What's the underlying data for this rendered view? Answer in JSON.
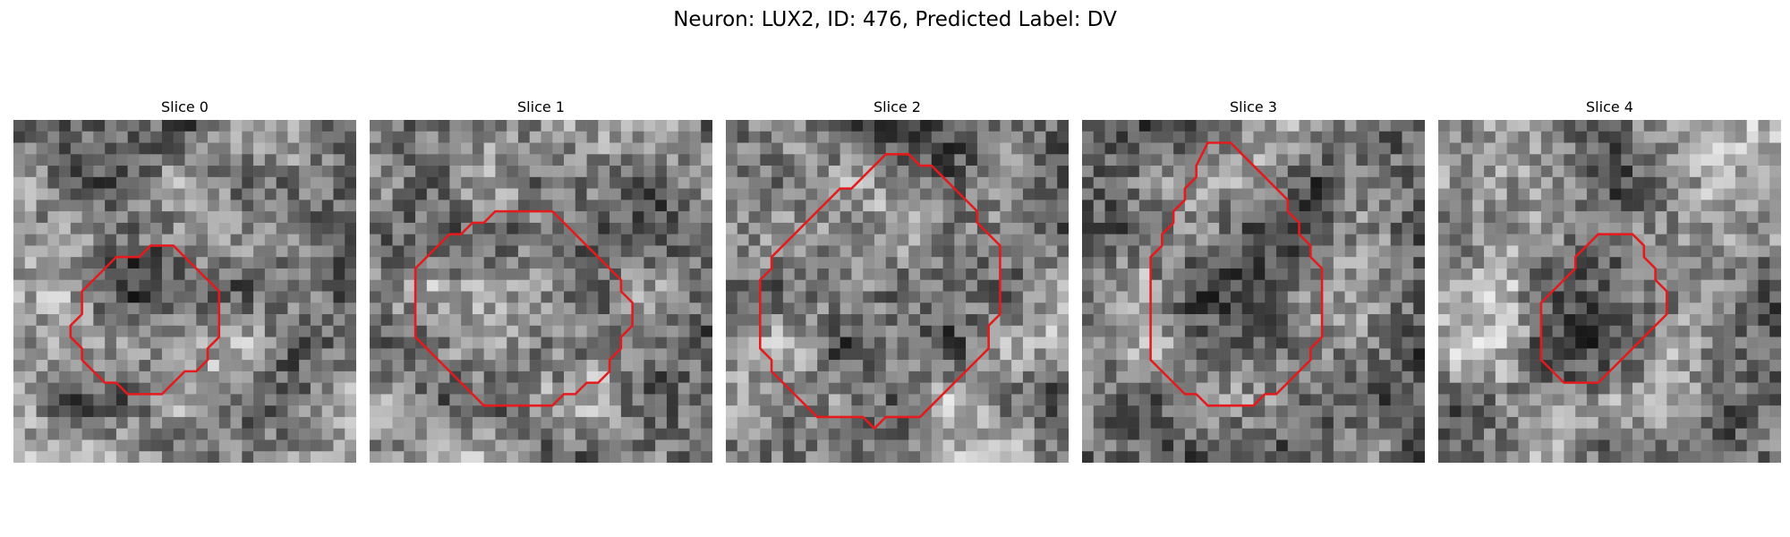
{
  "figure": {
    "title": "Neuron: LUX2, ID: 476, Predicted Label: DV"
  },
  "panels": [
    {
      "title": "Slice 0",
      "seed": 11,
      "contour_color": "#e41a1c",
      "contour": [
        [
          13,
          11
        ],
        [
          14,
          11
        ],
        [
          15,
          12
        ],
        [
          16,
          13
        ],
        [
          17,
          14
        ],
        [
          18,
          15
        ],
        [
          18,
          17
        ],
        [
          18,
          19
        ],
        [
          17,
          20
        ],
        [
          17,
          21
        ],
        [
          16,
          22
        ],
        [
          15,
          22
        ],
        [
          14,
          23
        ],
        [
          13,
          24
        ],
        [
          11,
          24
        ],
        [
          10,
          24
        ],
        [
          9,
          23
        ],
        [
          8,
          23
        ],
        [
          7,
          22
        ],
        [
          6,
          21
        ],
        [
          6,
          20
        ],
        [
          5,
          19
        ],
        [
          5,
          18
        ],
        [
          6,
          17
        ],
        [
          6,
          16
        ],
        [
          6,
          15
        ],
        [
          7,
          14
        ],
        [
          8,
          13
        ],
        [
          9,
          12
        ],
        [
          10,
          12
        ],
        [
          11,
          12
        ],
        [
          12,
          11
        ]
      ]
    },
    {
      "title": "Slice 1",
      "seed": 23,
      "contour_color": "#e41a1c",
      "contour": [
        [
          14,
          8
        ],
        [
          16,
          8
        ],
        [
          17,
          9
        ],
        [
          18,
          10
        ],
        [
          19,
          11
        ],
        [
          20,
          12
        ],
        [
          21,
          13
        ],
        [
          22,
          14
        ],
        [
          22,
          15
        ],
        [
          23,
          16
        ],
        [
          23,
          17
        ],
        [
          23,
          18
        ],
        [
          22,
          19
        ],
        [
          22,
          20
        ],
        [
          21,
          21
        ],
        [
          21,
          22
        ],
        [
          20,
          23
        ],
        [
          19,
          23
        ],
        [
          18,
          24
        ],
        [
          17,
          24
        ],
        [
          16,
          25
        ],
        [
          11,
          25
        ],
        [
          10,
          25
        ],
        [
          9,
          24
        ],
        [
          8,
          23
        ],
        [
          7,
          22
        ],
        [
          6,
          21
        ],
        [
          5,
          20
        ],
        [
          4,
          19
        ],
        [
          4,
          17
        ],
        [
          4,
          15
        ],
        [
          4,
          13
        ],
        [
          5,
          12
        ],
        [
          6,
          11
        ],
        [
          7,
          10
        ],
        [
          8,
          10
        ],
        [
          9,
          9
        ],
        [
          10,
          9
        ],
        [
          11,
          8
        ],
        [
          13,
          8
        ]
      ]
    },
    {
      "title": "Slice 2",
      "seed": 37,
      "contour_color": "#e41a1c",
      "contour": [
        [
          14,
          3
        ],
        [
          16,
          3
        ],
        [
          17,
          4
        ],
        [
          18,
          4
        ],
        [
          19,
          5
        ],
        [
          20,
          6
        ],
        [
          21,
          7
        ],
        [
          22,
          8
        ],
        [
          22,
          9
        ],
        [
          23,
          10
        ],
        [
          24,
          11
        ],
        [
          24,
          13
        ],
        [
          24,
          15
        ],
        [
          24,
          17
        ],
        [
          23,
          18
        ],
        [
          23,
          20
        ],
        [
          22,
          21
        ],
        [
          21,
          22
        ],
        [
          20,
          23
        ],
        [
          19,
          24
        ],
        [
          18,
          25
        ],
        [
          17,
          26
        ],
        [
          16,
          26
        ],
        [
          14,
          26
        ],
        [
          13,
          27
        ],
        [
          12,
          26
        ],
        [
          10,
          26
        ],
        [
          8,
          26
        ],
        [
          7,
          25
        ],
        [
          6,
          24
        ],
        [
          5,
          23
        ],
        [
          4,
          22
        ],
        [
          4,
          21
        ],
        [
          3,
          20
        ],
        [
          3,
          18
        ],
        [
          3,
          16
        ],
        [
          3,
          14
        ],
        [
          4,
          13
        ],
        [
          4,
          12
        ],
        [
          5,
          11
        ],
        [
          6,
          10
        ],
        [
          7,
          9
        ],
        [
          8,
          8
        ],
        [
          9,
          7
        ],
        [
          10,
          6
        ],
        [
          11,
          6
        ],
        [
          12,
          5
        ],
        [
          13,
          4
        ]
      ]
    },
    {
      "title": "Slice 3",
      "seed": 53,
      "contour_color": "#e41a1c",
      "contour": [
        [
          11,
          2
        ],
        [
          13,
          2
        ],
        [
          14,
          3
        ],
        [
          15,
          4
        ],
        [
          16,
          5
        ],
        [
          17,
          6
        ],
        [
          18,
          7
        ],
        [
          18,
          8
        ],
        [
          19,
          9
        ],
        [
          19,
          10
        ],
        [
          20,
          11
        ],
        [
          20,
          12
        ],
        [
          21,
          13
        ],
        [
          21,
          15
        ],
        [
          21,
          17
        ],
        [
          21,
          19
        ],
        [
          20,
          20
        ],
        [
          20,
          21
        ],
        [
          19,
          22
        ],
        [
          18,
          23
        ],
        [
          17,
          24
        ],
        [
          16,
          24
        ],
        [
          15,
          25
        ],
        [
          12,
          25
        ],
        [
          11,
          25
        ],
        [
          10,
          24
        ],
        [
          9,
          24
        ],
        [
          8,
          23
        ],
        [
          7,
          22
        ],
        [
          6,
          21
        ],
        [
          6,
          20
        ],
        [
          6,
          18
        ],
        [
          6,
          16
        ],
        [
          6,
          14
        ],
        [
          6,
          12
        ],
        [
          7,
          11
        ],
        [
          7,
          10
        ],
        [
          8,
          9
        ],
        [
          8,
          8
        ],
        [
          9,
          7
        ],
        [
          9,
          6
        ],
        [
          10,
          5
        ],
        [
          10,
          4
        ]
      ]
    },
    {
      "title": "Slice 4",
      "seed": 71,
      "contour_color": "#e41a1c",
      "contour": [
        [
          14,
          10
        ],
        [
          17,
          10
        ],
        [
          18,
          11
        ],
        [
          18,
          12
        ],
        [
          19,
          13
        ],
        [
          19,
          14
        ],
        [
          20,
          15
        ],
        [
          20,
          17
        ],
        [
          19,
          18
        ],
        [
          18,
          19
        ],
        [
          17,
          20
        ],
        [
          16,
          21
        ],
        [
          15,
          22
        ],
        [
          14,
          23
        ],
        [
          12,
          23
        ],
        [
          11,
          23
        ],
        [
          10,
          22
        ],
        [
          9,
          21
        ],
        [
          9,
          19
        ],
        [
          9,
          17
        ],
        [
          9,
          16
        ],
        [
          10,
          15
        ],
        [
          11,
          14
        ],
        [
          12,
          13
        ],
        [
          12,
          12
        ],
        [
          13,
          11
        ]
      ]
    }
  ]
}
